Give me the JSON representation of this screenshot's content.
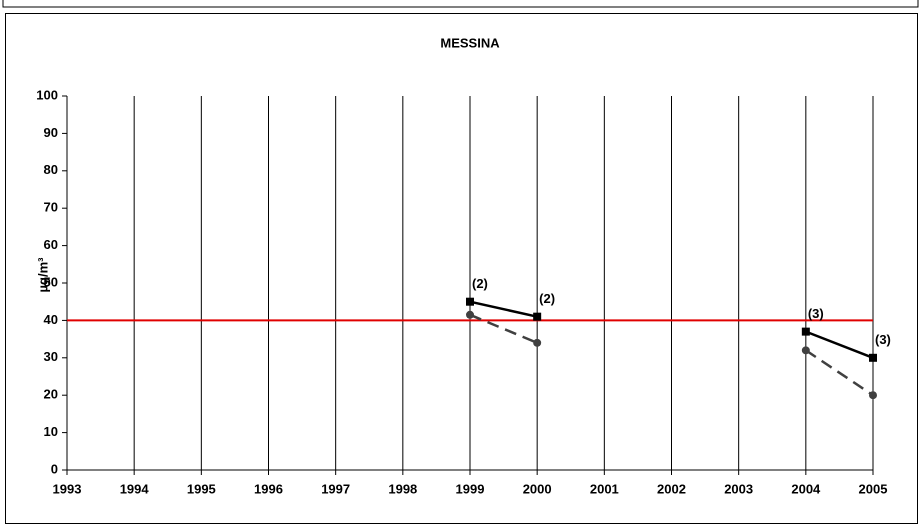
{
  "chart_data": {
    "type": "line",
    "title": "MESSINA",
    "y_label": "µg/m³",
    "x": [
      1993,
      1994,
      1995,
      1996,
      1997,
      1998,
      1999,
      2000,
      2001,
      2002,
      2003,
      2004,
      2005
    ],
    "series": [
      {
        "color": "#000000",
        "marker": "square",
        "dashed": false,
        "values": [
          null,
          null,
          null,
          null,
          null,
          null,
          45,
          41,
          null,
          null,
          null,
          37,
          30
        ]
      },
      {
        "color": "#404040",
        "marker": "circle",
        "dashed": true,
        "values": [
          null,
          null,
          null,
          null,
          null,
          null,
          41.5,
          34,
          null,
          null,
          null,
          32,
          20
        ]
      }
    ],
    "reference_line": {
      "value": 40,
      "color": "#e00000"
    },
    "annotations": [
      {
        "x": 1999,
        "y": 45,
        "text": "(2)"
      },
      {
        "x": 2000,
        "y": 41,
        "text": "(2)"
      },
      {
        "x": 2004,
        "y": 37,
        "text": "(3)"
      },
      {
        "x": 2005,
        "y": 30,
        "text": "(3)"
      }
    ],
    "xlim": [
      1993,
      2005
    ],
    "xticks": [
      1993,
      1994,
      1995,
      1996,
      1997,
      1998,
      1999,
      2000,
      2001,
      2002,
      2003,
      2004,
      2005
    ],
    "ylim": [
      0,
      100
    ],
    "yticks": [
      0,
      10,
      20,
      30,
      40,
      50,
      60,
      70,
      80,
      90,
      100
    ],
    "grid": "x"
  }
}
